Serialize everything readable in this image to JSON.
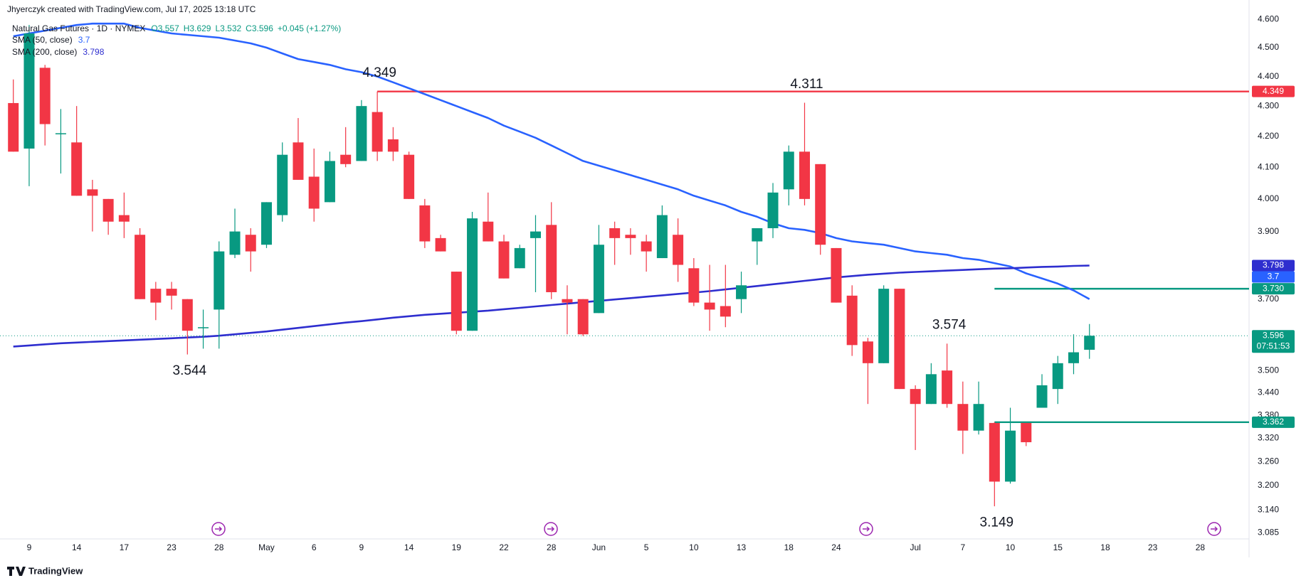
{
  "chart_data": {
    "type": "candlestick",
    "credit": "Jhyerczyk created with TradingView.com, Jul 17, 2025 13:18 UTC",
    "title": "Natural Gas Futures · 1D · NYMEX",
    "ohlc_legend": [
      "O3.557",
      "H3.629",
      "L3.532",
      "C3.596",
      "+0.045 (+1.27%)"
    ],
    "categories": [
      null,
      "9",
      null,
      null,
      "14",
      null,
      null,
      "17",
      null,
      null,
      "23",
      null,
      null,
      "28",
      null,
      null,
      "May",
      null,
      null,
      "6",
      null,
      null,
      "9",
      null,
      null,
      "14",
      null,
      null,
      "19",
      null,
      null,
      "22",
      null,
      null,
      "28",
      null,
      null,
      "Jun",
      null,
      null,
      "5",
      null,
      null,
      "10",
      null,
      null,
      "13",
      null,
      null,
      "18",
      null,
      null,
      "24",
      null,
      null,
      null,
      null,
      "Jul",
      null,
      null,
      "7",
      null,
      null,
      "10",
      null,
      null,
      "15",
      null,
      null,
      "18",
      null,
      null,
      "23",
      null,
      null,
      "28"
    ],
    "open": [
      4.31,
      4.16,
      4.43,
      4.21,
      4.18,
      4.03,
      4.0,
      3.95,
      3.89,
      3.73,
      3.73,
      3.7,
      3.62,
      3.67,
      3.83,
      3.89,
      3.86,
      3.95,
      4.18,
      4.07,
      3.99,
      4.14,
      4.12,
      4.28,
      4.19,
      4.14,
      3.98,
      3.88,
      3.78,
      3.61,
      3.93,
      3.87,
      3.79,
      3.88,
      3.92,
      3.7,
      3.7,
      3.66,
      3.91,
      3.89,
      3.87,
      3.82,
      3.89,
      3.79,
      3.69,
      3.68,
      3.7,
      3.87,
      3.91,
      4.03,
      4.15,
      4.11,
      3.85,
      3.71,
      3.58,
      3.52,
      3.73,
      3.45,
      3.41,
      3.5,
      3.41,
      3.34,
      3.36,
      3.21,
      3.36,
      3.4,
      3.45,
      3.52,
      3.557,
      null,
      null,
      null,
      null,
      null,
      null,
      null
    ],
    "high": [
      4.39,
      4.58,
      4.44,
      4.29,
      4.3,
      4.06,
      4.0,
      4.02,
      3.91,
      3.75,
      3.75,
      3.7,
      3.67,
      3.87,
      3.97,
      3.91,
      3.99,
      4.18,
      4.26,
      4.16,
      4.15,
      4.23,
      4.32,
      4.349,
      4.23,
      4.15,
      4.0,
      3.89,
      3.78,
      3.96,
      4.02,
      3.89,
      3.86,
      3.95,
      3.99,
      3.74,
      3.7,
      3.92,
      3.93,
      3.91,
      3.89,
      3.98,
      3.94,
      3.82,
      3.8,
      3.8,
      3.78,
      3.91,
      4.05,
      4.17,
      4.311,
      4.11,
      3.85,
      3.74,
      3.59,
      3.74,
      3.73,
      3.46,
      3.52,
      3.574,
      3.47,
      3.47,
      3.362,
      3.4,
      3.36,
      3.49,
      3.54,
      3.6,
      3.629,
      null,
      null,
      null,
      null,
      null,
      null,
      null
    ],
    "low": [
      4.15,
      4.04,
      4.17,
      4.08,
      4.01,
      3.9,
      3.89,
      3.88,
      3.7,
      3.64,
      3.67,
      3.544,
      3.56,
      3.56,
      3.82,
      3.78,
      3.85,
      3.93,
      4.06,
      3.93,
      3.99,
      4.1,
      4.12,
      4.12,
      4.12,
      4.0,
      3.85,
      3.84,
      3.6,
      3.61,
      3.87,
      3.76,
      3.79,
      3.72,
      3.7,
      3.6,
      3.595,
      3.66,
      3.8,
      3.83,
      3.78,
      3.82,
      3.75,
      3.68,
      3.61,
      3.62,
      3.66,
      3.8,
      3.88,
      3.98,
      3.98,
      3.83,
      3.69,
      3.54,
      3.41,
      3.52,
      3.45,
      3.29,
      3.41,
      3.4,
      3.28,
      3.33,
      3.149,
      3.205,
      3.3,
      3.4,
      3.41,
      3.49,
      3.532,
      null,
      null,
      null,
      null,
      null,
      null,
      null
    ],
    "close": [
      4.15,
      4.55,
      4.24,
      4.21,
      4.01,
      4.01,
      3.93,
      3.93,
      3.7,
      3.69,
      3.71,
      3.61,
      3.62,
      3.84,
      3.9,
      3.84,
      3.99,
      4.14,
      4.06,
      3.97,
      4.12,
      4.11,
      4.3,
      4.15,
      4.15,
      4.0,
      3.87,
      3.84,
      3.61,
      3.94,
      3.87,
      3.76,
      3.85,
      3.9,
      3.72,
      3.69,
      3.6,
      3.86,
      3.88,
      3.88,
      3.84,
      3.95,
      3.8,
      3.69,
      3.67,
      3.65,
      3.74,
      3.91,
      4.02,
      4.15,
      4.0,
      3.86,
      3.69,
      3.57,
      3.52,
      3.73,
      3.45,
      3.41,
      3.49,
      3.41,
      3.34,
      3.41,
      3.21,
      3.34,
      3.31,
      3.46,
      3.52,
      3.55,
      3.596,
      null,
      null,
      null,
      null,
      null,
      null,
      null
    ],
    "up_color": "#089981",
    "down_color": "#f23645",
    "series": [
      {
        "name": "SMA (50, close)",
        "color": "#2962ff",
        "values": [
          4.54,
          4.55,
          4.56,
          4.57,
          4.58,
          4.585,
          4.585,
          4.585,
          4.57,
          4.56,
          4.55,
          4.545,
          4.54,
          4.535,
          4.525,
          4.515,
          4.5,
          4.48,
          4.46,
          4.45,
          4.44,
          4.425,
          4.415,
          4.4,
          4.38,
          4.36,
          4.34,
          4.32,
          4.3,
          4.28,
          4.26,
          4.235,
          4.215,
          4.195,
          4.17,
          4.145,
          4.12,
          4.105,
          4.09,
          4.075,
          4.06,
          4.045,
          4.03,
          4.01,
          3.995,
          3.98,
          3.96,
          3.945,
          3.925,
          3.91,
          3.905,
          3.895,
          3.88,
          3.87,
          3.865,
          3.86,
          3.85,
          3.84,
          3.835,
          3.83,
          3.82,
          3.815,
          3.805,
          3.795,
          3.775,
          3.76,
          3.745,
          3.725,
          3.7,
          null,
          null,
          null,
          null,
          null,
          null,
          null
        ]
      },
      {
        "name": "SMA (200, close)",
        "color": "#2e2ecf",
        "values": [
          3.566,
          3.569,
          3.572,
          3.575,
          3.577,
          3.579,
          3.581,
          3.583,
          3.585,
          3.587,
          3.589,
          3.591,
          3.593,
          3.596,
          3.6,
          3.604,
          3.608,
          3.613,
          3.618,
          3.623,
          3.628,
          3.633,
          3.637,
          3.642,
          3.647,
          3.651,
          3.655,
          3.658,
          3.661,
          3.664,
          3.667,
          3.671,
          3.675,
          3.679,
          3.683,
          3.687,
          3.691,
          3.695,
          3.699,
          3.703,
          3.707,
          3.711,
          3.715,
          3.719,
          3.723,
          3.728,
          3.733,
          3.738,
          3.743,
          3.748,
          3.753,
          3.758,
          3.763,
          3.767,
          3.771,
          3.774,
          3.777,
          3.779,
          3.781,
          3.783,
          3.785,
          3.787,
          3.789,
          3.79,
          3.792,
          3.794,
          3.795,
          3.797,
          3.798,
          null,
          null,
          null,
          null,
          null,
          null,
          null
        ]
      }
    ],
    "ylim": [
      3.07,
      4.67
    ],
    "log": true,
    "grid": false,
    "yticks": [
      {
        "value": 4.6,
        "label": "4.600"
      },
      {
        "value": 4.5,
        "label": "4.500"
      },
      {
        "value": 4.4,
        "label": "4.400"
      },
      {
        "value": 4.3,
        "label": "4.300"
      },
      {
        "value": 4.2,
        "label": "4.200"
      },
      {
        "value": 4.1,
        "label": "4.100"
      },
      {
        "value": 4.0,
        "label": "4.000"
      },
      {
        "value": 3.9,
        "label": "3.900"
      },
      {
        "value": 3.7,
        "label": "3.700"
      },
      {
        "value": 3.5,
        "label": "3.500"
      },
      {
        "value": 3.44,
        "label": "3.440"
      },
      {
        "value": 3.38,
        "label": "3.380"
      },
      {
        "value": 3.32,
        "label": "3.320"
      },
      {
        "value": 3.26,
        "label": "3.260"
      },
      {
        "value": 3.2,
        "label": "3.200"
      },
      {
        "value": 3.14,
        "label": "3.140"
      },
      {
        "value": 3.085,
        "label": "3.085"
      }
    ],
    "annotations": [
      4.349,
      4.311,
      3.544,
      3.574,
      3.149
    ],
    "levels": [
      {
        "value": 4.349,
        "color": "#f23645"
      },
      {
        "value": 3.73,
        "label": "3.730",
        "color": "#089981"
      },
      {
        "value": 3.362,
        "color": "#089981"
      }
    ],
    "countdown": "07:51:53",
    "brand": "TradingView"
  }
}
